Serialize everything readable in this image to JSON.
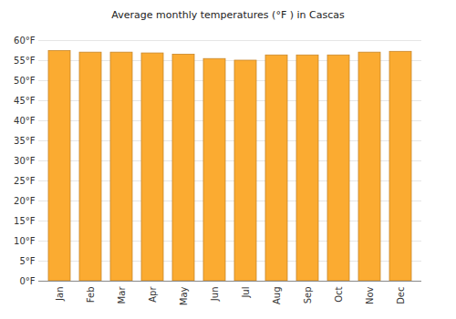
{
  "chart_data": {
    "type": "bar",
    "title": "Average monthly temperatures (°F ) in Cascas",
    "categories": [
      "Jan",
      "Feb",
      "Mar",
      "Apr",
      "May",
      "Jun",
      "Jul",
      "Aug",
      "Sep",
      "Oct",
      "Nov",
      "Dec"
    ],
    "values": [
      57.4,
      57.0,
      57.0,
      56.8,
      56.5,
      55.4,
      55.0,
      56.3,
      56.3,
      56.3,
      57.0,
      57.2
    ],
    "color": "#fbab31",
    "ylim": [
      0,
      60
    ],
    "yticks": [
      {
        "value": 0,
        "label": "0°F"
      },
      {
        "value": 5,
        "label": "5°F"
      },
      {
        "value": 10,
        "label": "10°F"
      },
      {
        "value": 15,
        "label": "15°F"
      },
      {
        "value": 20,
        "label": "20°F"
      },
      {
        "value": 25,
        "label": "25°F"
      },
      {
        "value": 30,
        "label": "30°F"
      },
      {
        "value": 35,
        "label": "35°F"
      },
      {
        "value": 40,
        "label": "40°F"
      },
      {
        "value": 45,
        "label": "45°F"
      },
      {
        "value": 50,
        "label": "50°F"
      },
      {
        "value": 55,
        "label": "55°F"
      },
      {
        "value": 60,
        "label": "60°F"
      }
    ],
    "grid": true
  }
}
